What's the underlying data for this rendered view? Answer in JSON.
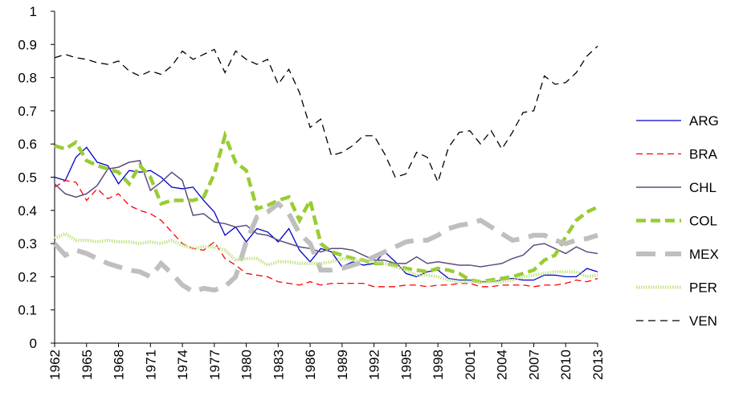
{
  "chart_data": {
    "type": "line",
    "x": [
      1962,
      1963,
      1964,
      1965,
      1966,
      1967,
      1968,
      1969,
      1970,
      1971,
      1972,
      1973,
      1974,
      1975,
      1976,
      1977,
      1978,
      1979,
      1980,
      1981,
      1982,
      1983,
      1984,
      1985,
      1986,
      1987,
      1988,
      1989,
      1990,
      1991,
      1992,
      1993,
      1994,
      1995,
      1996,
      1997,
      1998,
      1999,
      2000,
      2001,
      2002,
      2003,
      2004,
      2005,
      2006,
      2007,
      2008,
      2009,
      2010,
      2011,
      2012,
      2013
    ],
    "xlim": [
      1962,
      2013
    ],
    "xticks": [
      1962,
      1965,
      1968,
      1971,
      1974,
      1977,
      1980,
      1983,
      1986,
      1989,
      1992,
      1995,
      1998,
      2001,
      2004,
      2007,
      2010,
      2013
    ],
    "ylim": [
      0,
      1
    ],
    "yticks": [
      0,
      0.1,
      0.2,
      0.3,
      0.4,
      0.5,
      0.6,
      0.7,
      0.8,
      0.9,
      1
    ],
    "series": [
      {
        "name": "ARG",
        "color": "#0000cc",
        "values": [
          0.5,
          0.49,
          0.56,
          0.59,
          0.545,
          0.535,
          0.48,
          0.52,
          0.515,
          0.52,
          0.5,
          0.47,
          0.465,
          0.47,
          0.43,
          0.395,
          0.325,
          0.35,
          0.305,
          0.345,
          0.335,
          0.305,
          0.345,
          0.28,
          0.245,
          0.285,
          0.275,
          0.23,
          0.245,
          0.235,
          0.24,
          0.275,
          0.245,
          0.21,
          0.2,
          0.215,
          0.22,
          0.195,
          0.19,
          0.19,
          0.185,
          0.185,
          0.19,
          0.195,
          0.19,
          0.19,
          0.205,
          0.205,
          0.2,
          0.2,
          0.225,
          0.215
        ]
      },
      {
        "name": "BRA",
        "color": "#ff0000",
        "values": [
          0.47,
          0.49,
          0.485,
          0.43,
          0.465,
          0.435,
          0.45,
          0.415,
          0.4,
          0.39,
          0.37,
          0.335,
          0.3,
          0.285,
          0.28,
          0.305,
          0.255,
          0.235,
          0.21,
          0.205,
          0.2,
          0.185,
          0.18,
          0.175,
          0.185,
          0.175,
          0.18,
          0.18,
          0.18,
          0.18,
          0.17,
          0.17,
          0.17,
          0.175,
          0.175,
          0.17,
          0.175,
          0.175,
          0.18,
          0.18,
          0.17,
          0.17,
          0.175,
          0.175,
          0.175,
          0.17,
          0.175,
          0.175,
          0.18,
          0.19,
          0.185,
          0.195
        ]
      },
      {
        "name": "CHL",
        "color": "#5c4d7d",
        "values": [
          0.48,
          0.45,
          0.44,
          0.45,
          0.475,
          0.525,
          0.53,
          0.545,
          0.55,
          0.46,
          0.485,
          0.515,
          0.49,
          0.385,
          0.39,
          0.365,
          0.36,
          0.35,
          0.355,
          0.33,
          0.325,
          0.31,
          0.3,
          0.29,
          0.285,
          0.275,
          0.285,
          0.285,
          0.28,
          0.265,
          0.25,
          0.25,
          0.24,
          0.24,
          0.26,
          0.24,
          0.245,
          0.24,
          0.235,
          0.235,
          0.23,
          0.235,
          0.24,
          0.255,
          0.265,
          0.295,
          0.3,
          0.285,
          0.27,
          0.29,
          0.275,
          0.27
        ]
      },
      {
        "name": "COL",
        "color": "#99cc33",
        "values": [
          0.595,
          0.585,
          0.605,
          0.55,
          0.535,
          0.525,
          0.515,
          0.48,
          0.535,
          0.5,
          0.42,
          0.43,
          0.43,
          0.43,
          0.44,
          0.51,
          0.625,
          0.545,
          0.52,
          0.405,
          0.415,
          0.43,
          0.44,
          0.37,
          0.43,
          0.3,
          0.275,
          0.265,
          0.255,
          0.25,
          0.24,
          0.24,
          0.235,
          0.225,
          0.22,
          0.215,
          0.225,
          0.22,
          0.21,
          0.19,
          0.185,
          0.19,
          0.195,
          0.2,
          0.21,
          0.22,
          0.25,
          0.265,
          0.32,
          0.37,
          0.395,
          0.41
        ]
      },
      {
        "name": "MEX",
        "color": "#bfbfbf",
        "values": [
          0.3,
          0.265,
          0.28,
          0.27,
          0.255,
          0.24,
          0.23,
          0.22,
          0.215,
          0.2,
          0.24,
          0.21,
          0.175,
          0.155,
          0.165,
          0.16,
          0.17,
          0.2,
          0.305,
          0.38,
          0.395,
          0.42,
          0.39,
          0.33,
          0.3,
          0.22,
          0.22,
          0.225,
          0.235,
          0.245,
          0.26,
          0.275,
          0.29,
          0.305,
          0.31,
          0.31,
          0.325,
          0.345,
          0.355,
          0.36,
          0.37,
          0.35,
          0.33,
          0.31,
          0.315,
          0.325,
          0.325,
          0.31,
          0.3,
          0.31,
          0.315,
          0.325
        ]
      },
      {
        "name": "PER",
        "color": "#c4e38a",
        "values": [
          0.315,
          0.33,
          0.31,
          0.31,
          0.305,
          0.31,
          0.305,
          0.305,
          0.3,
          0.305,
          0.3,
          0.31,
          0.295,
          0.285,
          0.29,
          0.29,
          0.28,
          0.25,
          0.255,
          0.255,
          0.235,
          0.245,
          0.245,
          0.24,
          0.24,
          0.24,
          0.245,
          0.255,
          0.25,
          0.25,
          0.245,
          0.24,
          0.23,
          0.22,
          0.205,
          0.205,
          0.2,
          0.19,
          0.185,
          0.185,
          0.185,
          0.185,
          0.185,
          0.19,
          0.2,
          0.205,
          0.21,
          0.215,
          0.215,
          0.215,
          0.2,
          0.205
        ]
      },
      {
        "name": "VEN",
        "color": "#000000",
        "values": [
          0.86,
          0.87,
          0.86,
          0.855,
          0.845,
          0.84,
          0.85,
          0.82,
          0.805,
          0.82,
          0.81,
          0.835,
          0.88,
          0.855,
          0.87,
          0.885,
          0.815,
          0.88,
          0.855,
          0.84,
          0.855,
          0.78,
          0.825,
          0.755,
          0.65,
          0.675,
          0.565,
          0.575,
          0.595,
          0.625,
          0.625,
          0.57,
          0.5,
          0.51,
          0.575,
          0.56,
          0.485,
          0.59,
          0.635,
          0.64,
          0.6,
          0.64,
          0.585,
          0.635,
          0.695,
          0.7,
          0.805,
          0.78,
          0.785,
          0.815,
          0.865,
          0.895
        ]
      }
    ]
  }
}
